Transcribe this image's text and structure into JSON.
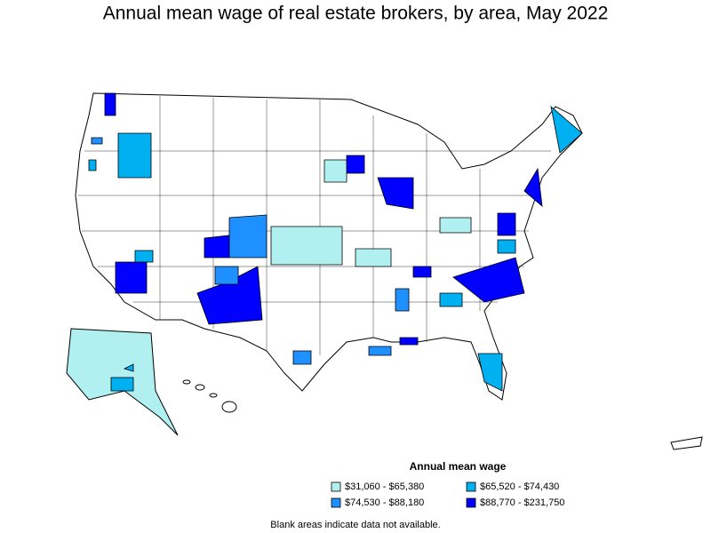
{
  "header": {
    "title": "Annual mean wage of real estate brokers, by area, May 2022"
  },
  "legend": {
    "title": "Annual mean wage",
    "items": [
      {
        "label": "$31,060 - $65,380",
        "color": "#b0f0f0"
      },
      {
        "label": "$65,520 - $74,430",
        "color": "#00b0f0"
      },
      {
        "label": "$74,530 - $88,180",
        "color": "#1e90ff"
      },
      {
        "label": "$88,770 - $231,750",
        "color": "#0000ff"
      }
    ]
  },
  "footnote": "Blank areas indicate data not available."
}
